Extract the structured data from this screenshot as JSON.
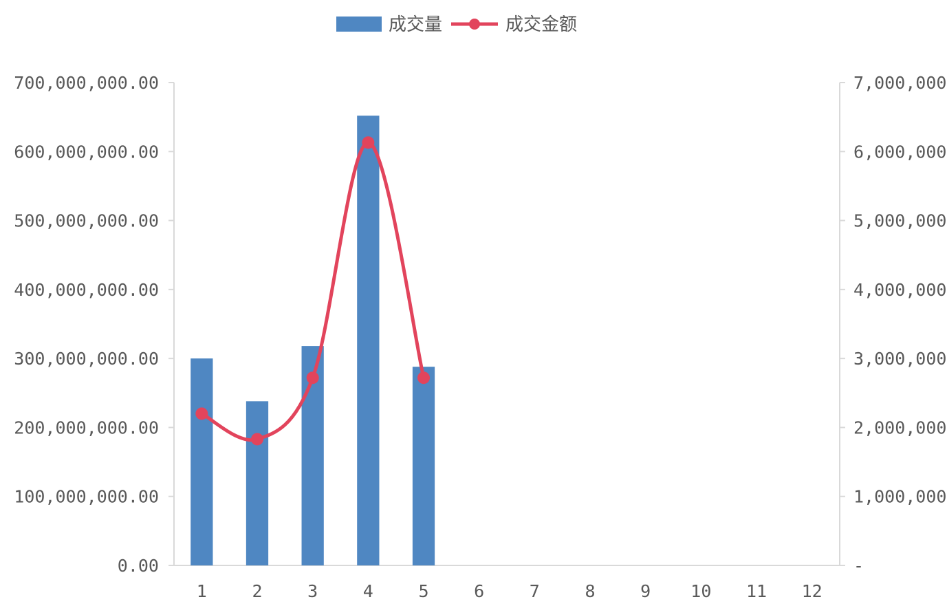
{
  "chart_data": {
    "type": "bar",
    "categories": [
      "1",
      "2",
      "3",
      "4",
      "5",
      "6",
      "7",
      "8",
      "9",
      "10",
      "11",
      "12"
    ],
    "series": [
      {
        "name": "成交量",
        "type": "bar",
        "axis": "left",
        "color": "#4f87c2",
        "values": [
          300000000,
          238000000,
          318000000,
          652000000,
          288000000,
          null,
          null,
          null,
          null,
          null,
          null,
          null
        ]
      },
      {
        "name": "成交金额",
        "type": "line",
        "smooth": true,
        "axis": "right",
        "color": "#e2445c",
        "values": [
          2200000,
          1830000,
          2720000,
          6130000,
          2720000,
          null,
          null,
          null,
          null,
          null,
          null,
          null
        ]
      }
    ],
    "y_left": {
      "lim": [
        0,
        700000000
      ],
      "ticks": [
        0,
        100000000,
        200000000,
        300000000,
        400000000,
        500000000,
        600000000,
        700000000
      ],
      "tick_labels": [
        "0.00",
        "100,000,000.00",
        "200,000,000.00",
        "300,000,000.00",
        "400,000,000.00",
        "500,000,000.00",
        "600,000,000.00",
        "700,000,000.00"
      ]
    },
    "y_right": {
      "lim": [
        0,
        7000000
      ],
      "ticks": [
        0,
        1000000,
        2000000,
        3000000,
        4000000,
        5000000,
        6000000,
        7000000
      ],
      "tick_labels": [
        "-",
        "1,000,000",
        "2,000,000",
        "3,000,000",
        "4,000,000",
        "5,000,000",
        "6,000,000",
        "7,000,000"
      ]
    },
    "legend": {
      "position": "top"
    },
    "grid": false
  }
}
